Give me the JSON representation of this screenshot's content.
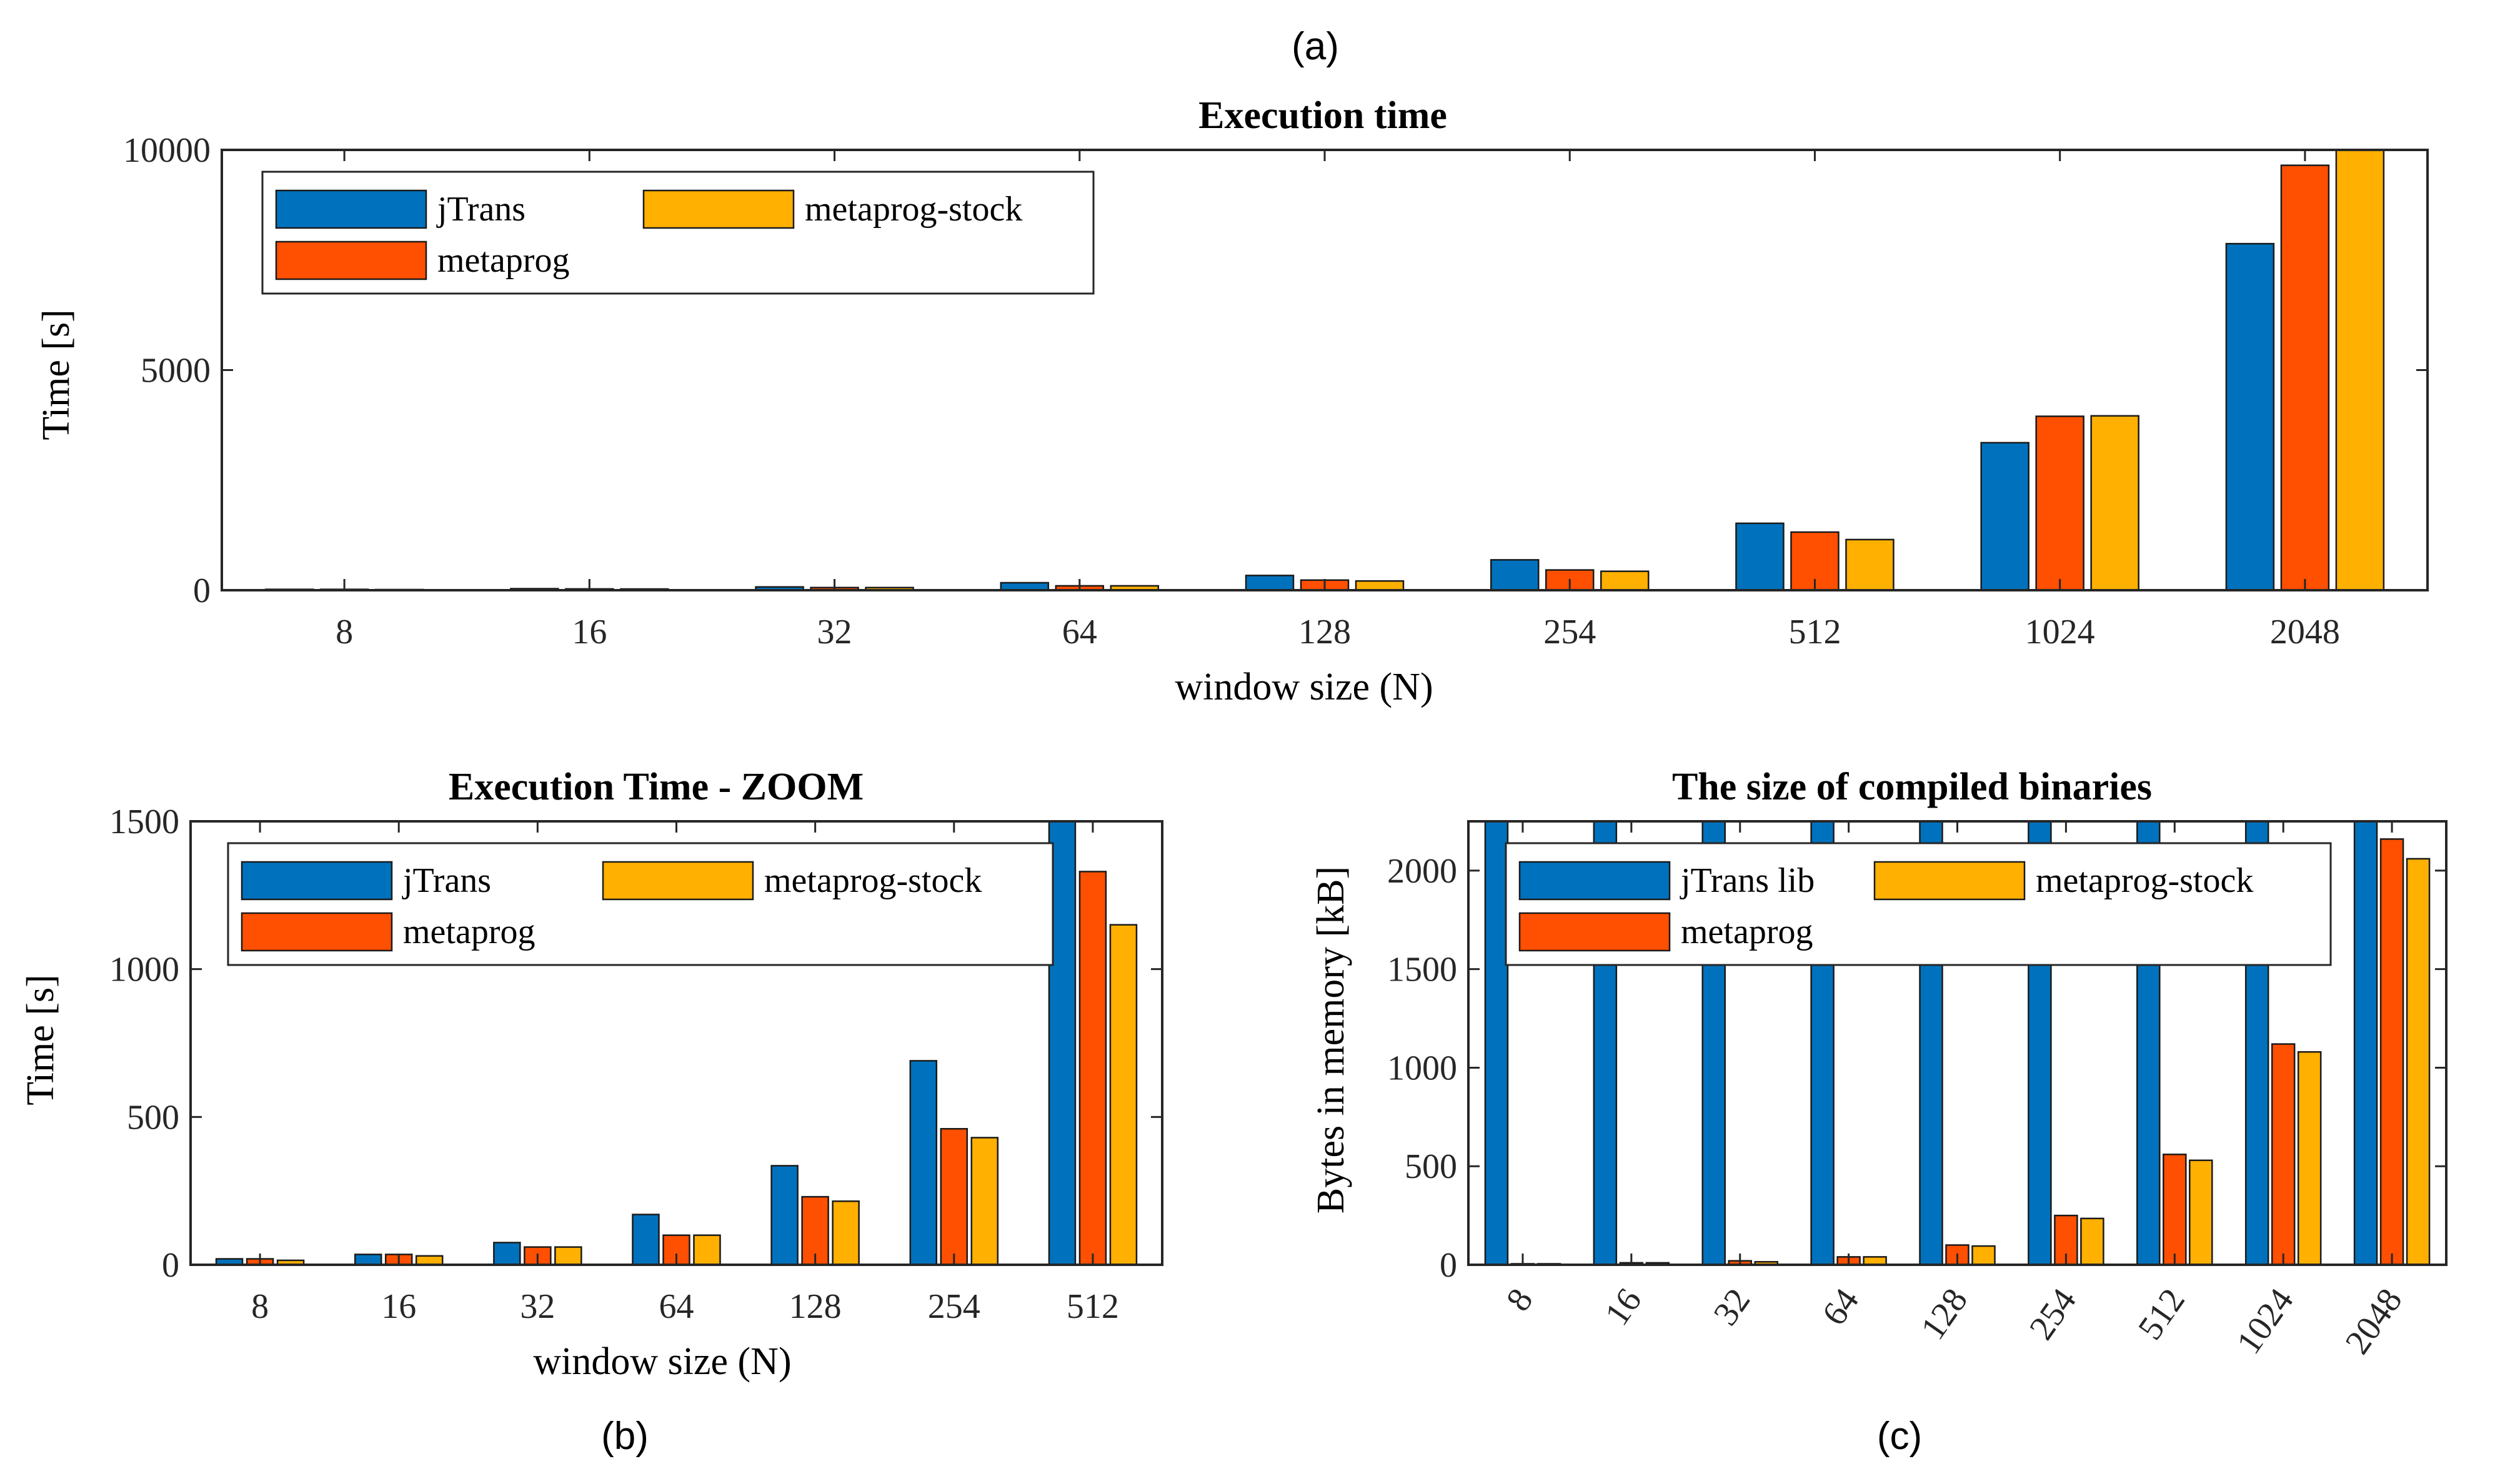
{
  "colors": {
    "jtrans": "#0072bd",
    "metaprog": "#ff4f00",
    "metaprog_stock": "#ffb000"
  },
  "labels": {
    "a": "(a)",
    "b": "(b)",
    "c": "(c)"
  },
  "chart_data": [
    {
      "id": "a",
      "type": "bar",
      "title": "Execution time",
      "xlabel": "window size (N)",
      "ylabel": "Time [s]",
      "ylim": [
        0,
        10000
      ],
      "yticks": [
        0,
        5000,
        10000
      ],
      "legend_placement": "top-left",
      "categories": [
        "8",
        "16",
        "32",
        "64",
        "128",
        "254",
        "512",
        "1024",
        "2048"
      ],
      "series": [
        {
          "name": "jTrans",
          "color_key": "jtrans",
          "values": [
            20,
            35,
            75,
            170,
            335,
            690,
            1520,
            3350,
            7870
          ]
        },
        {
          "name": "metaprog",
          "color_key": "metaprog",
          "values": [
            20,
            30,
            60,
            100,
            230,
            460,
            1320,
            3950,
            9650
          ]
        },
        {
          "name": "metaprog-stock",
          "color_key": "metaprog_stock",
          "values": [
            15,
            28,
            60,
            100,
            210,
            430,
            1150,
            3960,
            10000
          ]
        }
      ]
    },
    {
      "id": "b",
      "type": "bar",
      "title": "Execution Time - ZOOM",
      "xlabel": "window size (N)",
      "ylabel": "Time [s]",
      "ylim": [
        0,
        1500
      ],
      "yticks": [
        0,
        500,
        1000,
        1500
      ],
      "legend_placement": "top-left",
      "categories": [
        "8",
        "16",
        "32",
        "64",
        "128",
        "254",
        "512"
      ],
      "series": [
        {
          "name": "jTrans",
          "color_key": "jtrans",
          "values": [
            20,
            35,
            75,
            170,
            335,
            690,
            1520
          ]
        },
        {
          "name": "metaprog",
          "color_key": "metaprog",
          "values": [
            20,
            35,
            60,
            100,
            230,
            460,
            1330
          ]
        },
        {
          "name": "metaprog-stock",
          "color_key": "metaprog_stock",
          "values": [
            15,
            30,
            60,
            100,
            215,
            430,
            1150
          ]
        }
      ]
    },
    {
      "id": "c",
      "type": "bar",
      "title": "The size of compiled binaries",
      "xlabel": "",
      "ylabel": "Bytes in memory [kB]",
      "ylim": [
        0,
        2250
      ],
      "yticks": [
        0,
        500,
        1000,
        1500,
        2000
      ],
      "legend_placement": "top-left",
      "categories": [
        "8",
        "16",
        "32",
        "64",
        "128",
        "254",
        "512",
        "1024",
        "2048"
      ],
      "series": [
        {
          "name": "jTrans lib",
          "color_key": "jtrans",
          "values": [
            2250,
            2250,
            2250,
            2250,
            2250,
            2250,
            2250,
            2250,
            2250
          ]
        },
        {
          "name": "metaprog",
          "color_key": "metaprog",
          "values": [
            5,
            10,
            20,
            40,
            100,
            250,
            560,
            1120,
            2160
          ]
        },
        {
          "name": "metaprog-stock",
          "color_key": "metaprog_stock",
          "values": [
            5,
            10,
            15,
            40,
            95,
            235,
            530,
            1080,
            2060
          ]
        }
      ]
    }
  ]
}
